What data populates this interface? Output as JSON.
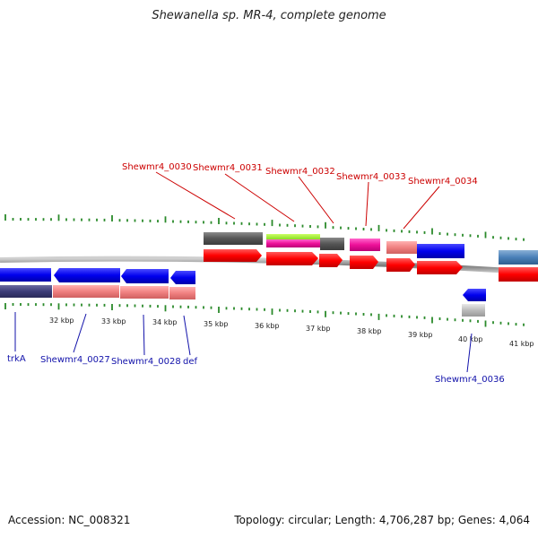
{
  "title": "Shewanella sp. MR-4, complete genome",
  "footer": {
    "accession": "Accession: NC_008321",
    "summary": "Topology: circular; Length: 4,706,287 bp; Genes: 4,064"
  },
  "colors": {
    "backbone": "#8a8a8a",
    "tick": "#2a8a2a",
    "cds_forward": "#ff0000",
    "cds_reverse": "#0000ee",
    "label_top": "#cc0000",
    "label_bottom": "#1111aa"
  },
  "scale_labels": [
    "32 kbp",
    "33 kbp",
    "34 kbp",
    "35 kbp",
    "36 kbp",
    "37 kbp",
    "38 kbp",
    "39 kbp",
    "40 kbp",
    "41 kbp"
  ],
  "genes_top": [
    "Shewmr4_0030",
    "Shewmr4_0031",
    "Shewmr4_0032",
    "Shewmr4_0033",
    "Shewmr4_0034"
  ],
  "genes_bottom": [
    "trkA",
    "Shewmr4_0027",
    "Shewmr4_0028",
    "def",
    "Shewmr4_0036"
  ]
}
